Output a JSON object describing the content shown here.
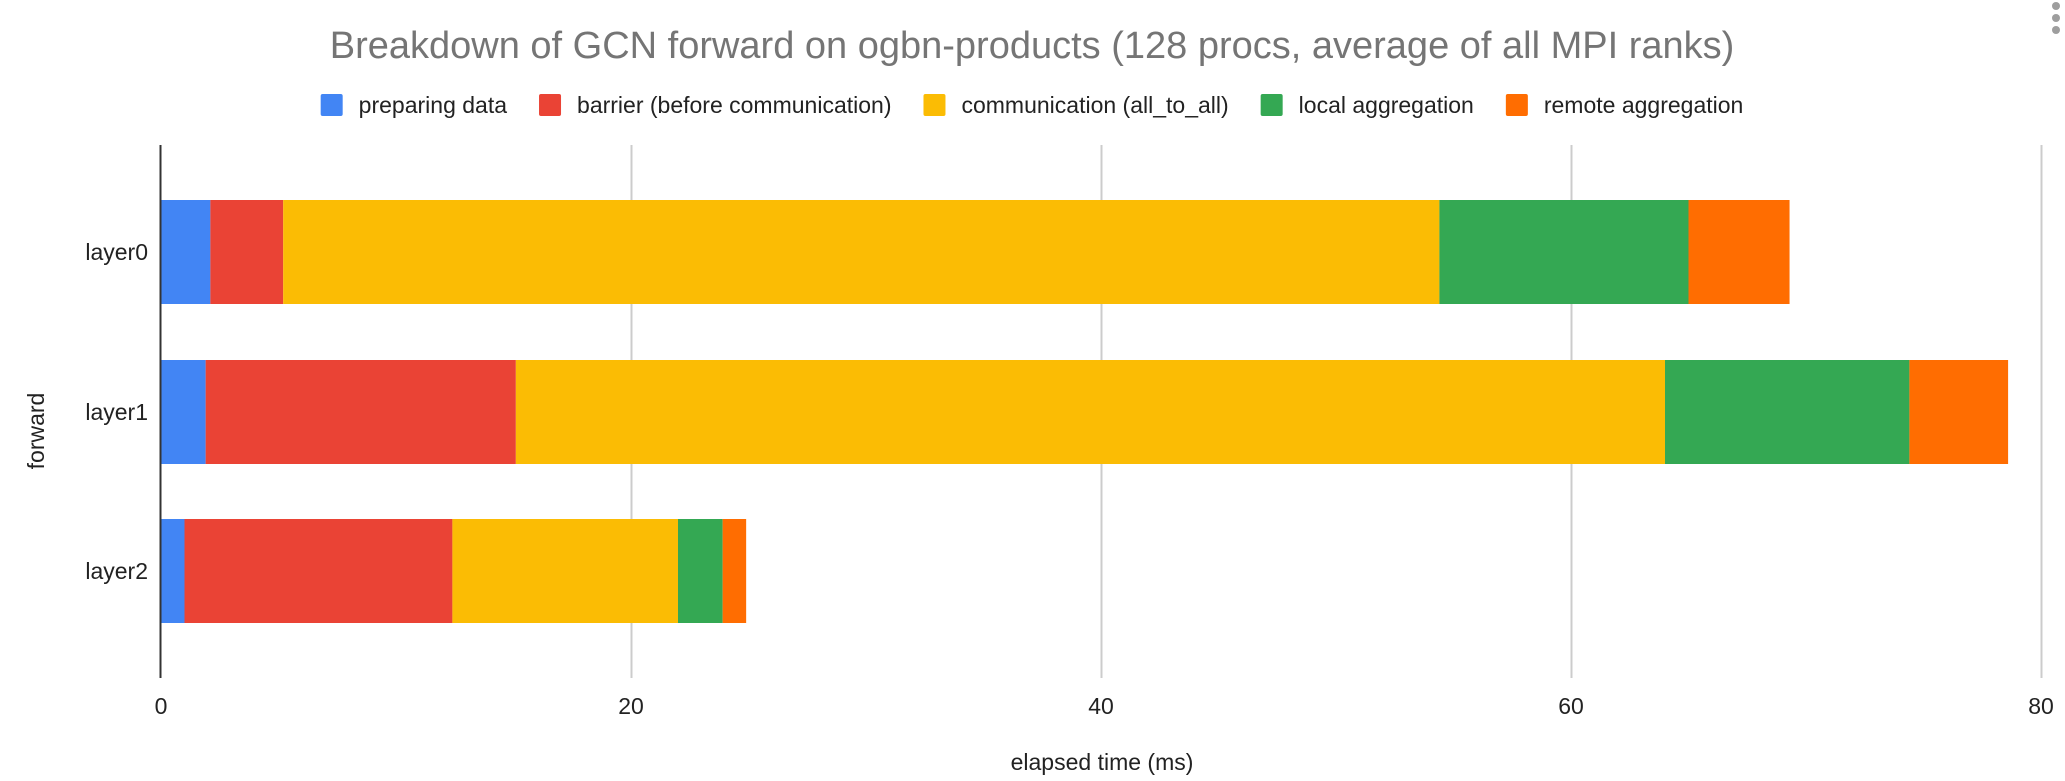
{
  "chart_data": {
    "type": "bar",
    "orientation": "horizontal",
    "stacked": true,
    "title": "Breakdown of GCN forward on ogbn-products (128 procs, average of all MPI ranks)",
    "xlabel": "elapsed time (ms)",
    "ylabel": "forward",
    "categories": [
      "layer0",
      "layer1",
      "layer2"
    ],
    "xlim": [
      0,
      80
    ],
    "xticks": [
      0,
      20,
      40,
      60,
      80
    ],
    "grid": true,
    "legend_position": "top",
    "series": [
      {
        "name": "preparing data",
        "color": "#4285F4",
        "values": [
          2.1,
          1.9,
          1.0
        ]
      },
      {
        "name": "barrier (before communication)",
        "color": "#EA4335",
        "values": [
          3.1,
          13.2,
          11.4
        ]
      },
      {
        "name": "communication (all_to_all)",
        "color": "#FBBC04",
        "values": [
          49.2,
          48.9,
          9.6
        ]
      },
      {
        "name": "local aggregation",
        "color": "#34A853",
        "values": [
          10.6,
          10.4,
          1.9
        ]
      },
      {
        "name": "remote aggregation",
        "color": "#FF6D01",
        "values": [
          4.3,
          4.2,
          1.0
        ]
      }
    ]
  }
}
